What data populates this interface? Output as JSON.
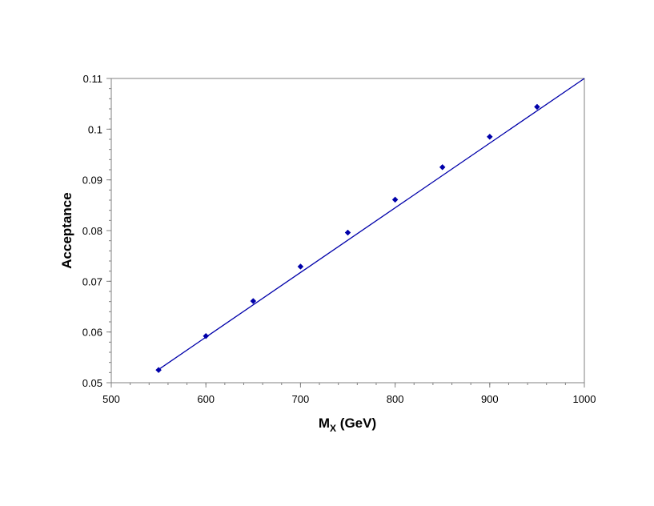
{
  "chart_data": {
    "type": "line",
    "title": "",
    "xlabel": {
      "main": "M",
      "subscript": "X",
      "suffix": " (GeV)"
    },
    "ylabel": "Acceptance",
    "xlim": [
      500,
      1000
    ],
    "ylim": [
      0.05,
      0.11
    ],
    "xticks": [
      500,
      600,
      700,
      800,
      900,
      1000
    ],
    "xtick_labels": [
      "500",
      "600",
      "700",
      "800",
      "900",
      "1000"
    ],
    "yticks": [
      0.05,
      0.06,
      0.07,
      0.08,
      0.09,
      0.1,
      0.11
    ],
    "ytick_labels": [
      "0.05",
      "0.06",
      "0.07",
      "0.08",
      "0.09",
      "0.1",
      "0.11"
    ],
    "x_minor_step": 20,
    "y_minor_step": 0.002,
    "grid": false,
    "legend": "none",
    "series": [
      {
        "marker": "diamond",
        "color": "#0000aa",
        "x": [
          550,
          600,
          650,
          700,
          750,
          800,
          850,
          900,
          950
        ],
        "y": [
          0.0525,
          0.0592,
          0.0661,
          0.0729,
          0.0796,
          0.0861,
          0.0925,
          0.0985,
          0.1044
        ]
      }
    ],
    "fit_line": {
      "color": "#0000aa",
      "x": [
        550,
        1000
      ],
      "y": [
        0.0526,
        0.11
      ]
    }
  }
}
